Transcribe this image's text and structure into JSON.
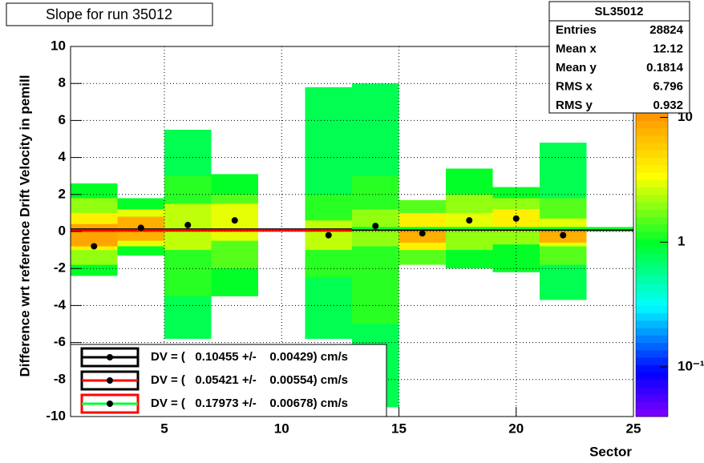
{
  "chart_data": {
    "type": "heatmap",
    "title": "Slope for run 35012",
    "x_label": "Sector",
    "y_label": "Difference wrt reference Drift Velocity in pemill",
    "xlim": [
      1,
      25
    ],
    "xticks": [
      5,
      10,
      15,
      20,
      25
    ],
    "ylim": [
      -10,
      10
    ],
    "yticks": [
      -10,
      -8,
      -6,
      -4,
      -2,
      0,
      2,
      4,
      6,
      8,
      10
    ],
    "zlim": [
      0.04,
      37
    ],
    "zticks": [
      {
        "value": 10,
        "label": "10"
      },
      {
        "value": 1,
        "label": "1"
      },
      {
        "value": 0.1,
        "label": "10⁻¹"
      }
    ],
    "zlog": true,
    "grid": true,
    "columns": [
      {
        "x": [
          1,
          3
        ],
        "bands": [
          [
            -2.4,
            2.6,
            1
          ],
          [
            -1.8,
            1.8,
            2
          ],
          [
            -1,
            1,
            4
          ],
          [
            -0.8,
            0.4,
            9
          ]
        ]
      },
      {
        "x": [
          3,
          5
        ],
        "bands": [
          [
            -1.3,
            1.8,
            1
          ],
          [
            -0.8,
            1.2,
            3
          ],
          [
            -0.5,
            0.8,
            8
          ]
        ]
      },
      {
        "x": [
          5,
          7
        ],
        "bands": [
          [
            -5.8,
            5.5,
            0.8
          ],
          [
            -3.5,
            3,
            1.2
          ],
          [
            -1,
            1.5,
            2.5
          ]
        ]
      },
      {
        "x": [
          7,
          9
        ],
        "bands": [
          [
            -3.5,
            3.1,
            1
          ],
          [
            -2,
            2,
            1.5
          ],
          [
            -0.5,
            1.5,
            3
          ]
        ]
      },
      {
        "x": [
          11,
          13
        ],
        "bands": [
          [
            -5.8,
            7.8,
            0.8
          ],
          [
            -2.5,
            2,
            1.2
          ],
          [
            -1,
            0.6,
            2.5
          ]
        ]
      },
      {
        "x": [
          13,
          15
        ],
        "bands": [
          [
            -9.5,
            8,
            0.8
          ],
          [
            -5,
            3,
            1.2
          ],
          [
            -0.8,
            1.2,
            2
          ]
        ]
      },
      {
        "x": [
          15,
          17
        ],
        "bands": [
          [
            -1.8,
            1.7,
            1.5
          ],
          [
            -1,
            1,
            4
          ],
          [
            -0.6,
            0.2,
            8
          ]
        ]
      },
      {
        "x": [
          17,
          19
        ],
        "bands": [
          [
            -2,
            3.4,
            1
          ],
          [
            -1,
            2,
            2
          ],
          [
            0,
            1,
            3
          ]
        ]
      },
      {
        "x": [
          19,
          21
        ],
        "bands": [
          [
            -2.2,
            2.4,
            1
          ],
          [
            -0.7,
            1.8,
            2
          ],
          [
            0,
            1.2,
            4
          ]
        ]
      },
      {
        "x": [
          21,
          23
        ],
        "bands": [
          [
            -3.7,
            4.8,
            0.8
          ],
          [
            -1.8,
            1.8,
            1.5
          ],
          [
            -0.8,
            0.7,
            3
          ],
          [
            -0.6,
            0.1,
            8
          ]
        ]
      },
      {
        "x": [
          23,
          25
        ],
        "bands": [
          [
            0,
            0.2,
            1.2
          ]
        ]
      }
    ],
    "points": {
      "color": "#000000",
      "x": [
        2,
        4,
        6,
        8,
        12,
        14,
        16,
        18,
        20,
        22
      ],
      "values": [
        -0.8,
        0.2,
        0.35,
        0.6,
        -0.2,
        0.3,
        -0.1,
        0.6,
        0.7,
        -0.2
      ]
    },
    "fits": [
      {
        "label": "DV = (   0.10455 +/-    0.00429) cm/s",
        "value": 0.10455,
        "x": [
          1,
          25
        ],
        "color": "#000000",
        "box": "#000000"
      },
      {
        "label": "DV = (   0.05421 +/-    0.00554) cm/s",
        "value": 0.05421,
        "x": [
          1,
          13
        ],
        "color": "#ff0000",
        "box": "#000000"
      },
      {
        "label": "DV = (   0.17973 +/-    0.00678) cm/s",
        "value": 0.17973,
        "x": [
          13,
          25
        ],
        "color": "#00ff33",
        "box": "#ff0000"
      }
    ],
    "stats": {
      "title": "SL35012",
      "rows": [
        [
          "Entries",
          "28824"
        ],
        [
          "Mean x",
          "12.12"
        ],
        [
          "Mean y",
          "0.1814"
        ],
        [
          "RMS x",
          "6.796"
        ],
        [
          "RMS y",
          "0.932"
        ]
      ]
    }
  }
}
